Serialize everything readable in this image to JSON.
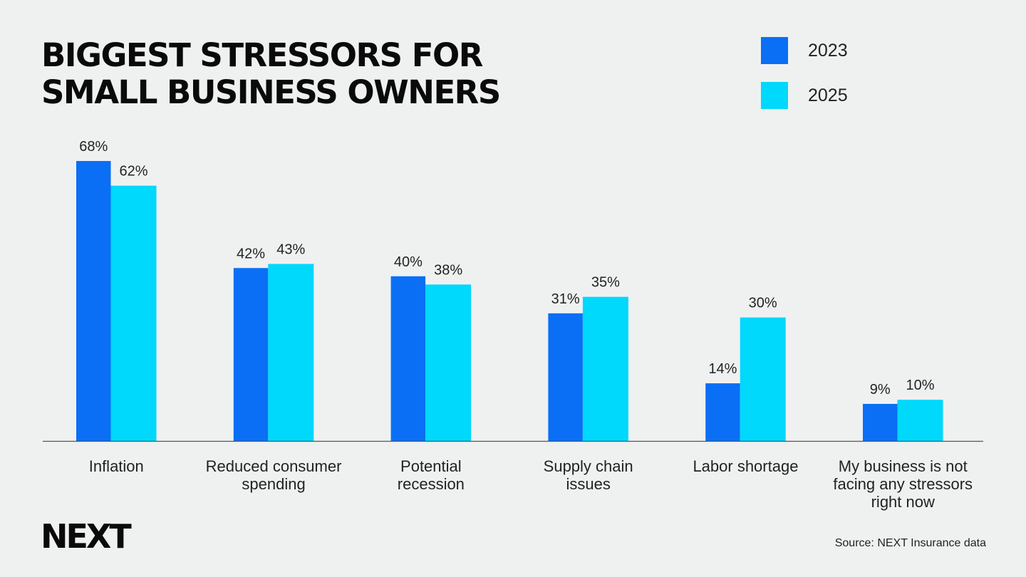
{
  "title_lines": [
    "BIGGEST STRESSORS FOR",
    "SMALL BUSINESS OWNERS"
  ],
  "logo": "NEXT",
  "source": "Source: NEXT Insurance data",
  "colors": {
    "series_2023": "#0a6ff5",
    "series_2025": "#00d8fc",
    "background": "#eff1f1",
    "axis": "#555555"
  },
  "chart_data": {
    "type": "bar",
    "title": "BIGGEST STRESSORS FOR SMALL BUSINESS OWNERS",
    "xlabel": "",
    "ylabel": "",
    "legend_position": "top-right",
    "grid": false,
    "ylim": [
      0,
      68
    ],
    "categories": [
      [
        "Inflation"
      ],
      [
        "Reduced consumer",
        "spending"
      ],
      [
        "Potential",
        "recession"
      ],
      [
        "Supply chain",
        "issues"
      ],
      [
        "Labor shortage"
      ],
      [
        "My business is not",
        "facing any stressors",
        "right now"
      ]
    ],
    "series": [
      {
        "name": "2023",
        "color": "#0a6ff5",
        "values": [
          68,
          42,
          40,
          31,
          14,
          9
        ],
        "labels": [
          "68%",
          "42%",
          "40%",
          "31%",
          "14%",
          "9%"
        ]
      },
      {
        "name": "2025",
        "color": "#00d8fc",
        "values": [
          62,
          43,
          38,
          35,
          30,
          10
        ],
        "labels": [
          "62%",
          "43%",
          "38%",
          "35%",
          "30%",
          "10%"
        ]
      }
    ]
  }
}
